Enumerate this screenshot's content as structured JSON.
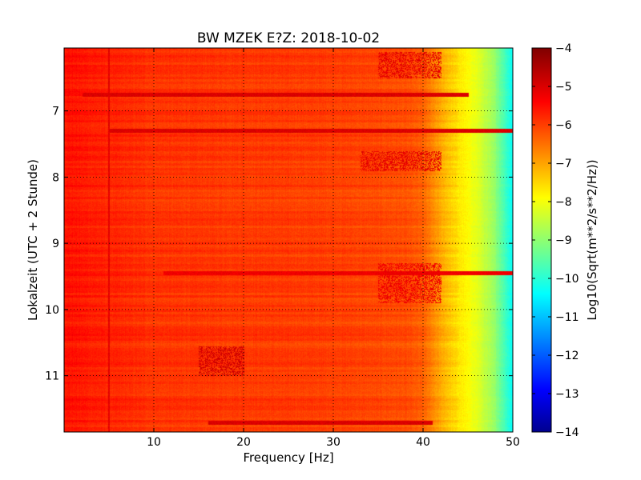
{
  "chart_data": {
    "type": "heatmap",
    "title": "BW MZEK E?Z: 2018-10-02",
    "xlabel": "Frequency [Hz]",
    "ylabel": "Lokalzeit (UTC + 2 Stunde)",
    "xlim": [
      0,
      50
    ],
    "ylim": [
      6.05,
      11.85
    ],
    "y_inverted": true,
    "x_ticks": [
      10,
      20,
      30,
      40,
      50
    ],
    "x_tick_labels": [
      "10",
      "20",
      "30",
      "40",
      "50"
    ],
    "y_ticks": [
      7,
      8,
      9,
      10,
      11
    ],
    "y_tick_labels": [
      "7",
      "8",
      "9",
      "10",
      "11"
    ],
    "grid": true,
    "colormap": "jet",
    "colorbar": {
      "label": "Log10(Sqrt(m**2/s**2/Hz))",
      "range": [
        -14,
        -4
      ],
      "ticks": [
        -4,
        -5,
        -6,
        -7,
        -8,
        -9,
        -10,
        -11,
        -12,
        -13,
        -14
      ],
      "tick_labels": [
        "−4",
        "−5",
        "−6",
        "−7",
        "−8",
        "−9",
        "−10",
        "−11",
        "−12",
        "−13",
        "−14"
      ]
    },
    "spectrum_profile": {
      "frequency_hz": [
        0,
        5,
        10,
        20,
        30,
        38,
        40,
        42,
        44,
        46,
        48,
        50
      ],
      "log_amplitude": [
        -5.4,
        -5.6,
        -5.75,
        -5.8,
        -5.85,
        -6.0,
        -6.2,
        -6.9,
        -7.5,
        -8.0,
        -8.8,
        -10.2
      ]
    },
    "bright_lines": [
      {
        "time": 6.75,
        "freq_range": [
          2,
          45
        ],
        "log_amplitude": -4.9
      },
      {
        "time": 7.3,
        "freq_range": [
          5,
          50
        ],
        "log_amplitude": -4.9
      },
      {
        "time": 9.45,
        "freq_range": [
          11,
          50
        ],
        "log_amplitude": -5.1
      },
      {
        "time": 11.7,
        "freq_range": [
          16,
          41
        ],
        "log_amplitude": -4.9
      }
    ],
    "bright_patches": [
      {
        "time_range": [
          6.1,
          6.5
        ],
        "freq_range": [
          35,
          42
        ],
        "log_amplitude": -5.0
      },
      {
        "time_range": [
          7.6,
          7.9
        ],
        "freq_range": [
          33,
          42
        ],
        "log_amplitude": -5.0
      },
      {
        "time_range": [
          9.3,
          9.9
        ],
        "freq_range": [
          35,
          42
        ],
        "log_amplitude": -5.1
      },
      {
        "time_range": [
          10.55,
          11.0
        ],
        "freq_range": [
          15,
          20
        ],
        "log_amplitude": -4.8
      }
    ]
  }
}
